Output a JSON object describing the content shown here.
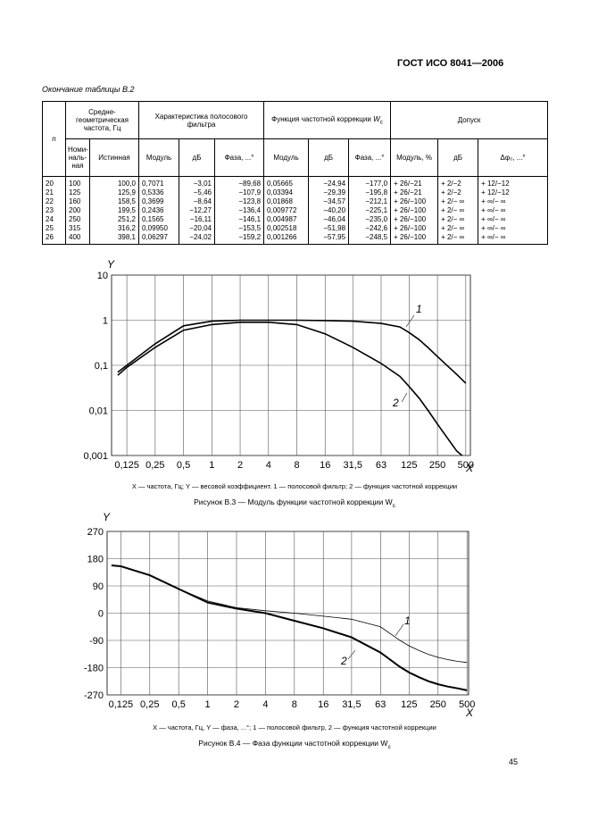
{
  "header": {
    "standard": "ГОСТ ИСО 8041—2006"
  },
  "table": {
    "caption": "Окончание таблицы В.2",
    "head": {
      "n": "n",
      "freq": "Средне-геометрическая частота, Гц",
      "filter": "Характеристика полосового фильтра",
      "wc": "Функция частотной коррекции",
      "wc_symbol": "W",
      "wc_sub": "c",
      "tolerance": "Допуск",
      "columns": [
        "Номи-наль-ная",
        "Истинная",
        "Модуль",
        "дБ",
        "Фаза, ...°",
        "Модуль",
        "дБ",
        "Фаза, ...°",
        "Модуль, %",
        "дБ",
        "Δφ₀, ...°"
      ]
    },
    "rows": [
      [
        "20",
        "100",
        "100,0",
        "0,7071",
        "−3,01",
        "−89,68",
        "0,05665",
        "−24,94",
        "−177,0",
        "+ 26/−21",
        "+ 2/−2",
        "+ 12/−12"
      ],
      [
        "21",
        "125",
        "125,9",
        "0,5336",
        "−5,46",
        "−107,9",
        "0,03394",
        "−29,39",
        "−195,8",
        "+ 26/−21",
        "+ 2/−2",
        "+ 12/−12"
      ],
      [
        "22",
        "160",
        "158,5",
        "0,3699",
        "−8,64",
        "−123,8",
        "0,01868",
        "−34,57",
        "−212,1",
        "+ 26/−100",
        "+ 2/− ∞",
        "+ ∞/− ∞"
      ],
      [
        "23",
        "200",
        "199,5",
        "0,2436",
        "−12,27",
        "−136,4",
        "0,009772",
        "−40,20",
        "−225,1",
        "+ 26/−100",
        "+ 2/− ∞",
        "+ ∞/− ∞"
      ],
      [
        "24",
        "250",
        "251,2",
        "0,1565",
        "−16,11",
        "−146,1",
        "0,004987",
        "−46,04",
        "−235,0",
        "+ 26/−100",
        "+ 2/− ∞",
        "+ ∞/− ∞"
      ],
      [
        "25",
        "315",
        "316,2",
        "0,09950",
        "−20,04",
        "−153,5",
        "0,002518",
        "−51,98",
        "−242,6",
        "+ 26/−100",
        "+ 2/− ∞",
        "+ ∞/− ∞"
      ],
      [
        "26",
        "400",
        "398,1",
        "0,06297",
        "−24,02",
        "−159,2",
        "0,001266",
        "−57,95",
        "−248,5",
        "+ 26/−100",
        "+ 2/− ∞",
        "+ ∞/− ∞"
      ]
    ]
  },
  "chart_data": [
    {
      "type": "line",
      "xscale": "log",
      "yscale": "log",
      "grid": true,
      "xlabel": "X",
      "ylabel": "Y",
      "note": "X — частота, Гц; Y — весовой коэффициент. 1 — полосовой фильтр; 2 — функция частотной коррекции",
      "title": "Рисунок В.3 — Модуль функции частотной коррекции W",
      "title_sub": "c",
      "xlim": [
        0.086,
        560
      ],
      "ylim": [
        0.001,
        10
      ],
      "xticks": [
        {
          "value": 0.125,
          "label": "0,125"
        },
        {
          "value": 0.25,
          "label": "0,25"
        },
        {
          "value": 0.5,
          "label": "0,5"
        },
        1,
        2,
        4,
        8,
        16,
        {
          "value": 31.5,
          "label": "31,5"
        },
        63,
        125,
        250,
        500
      ],
      "yticks": [
        {
          "value": 0.001,
          "label": "0,001"
        },
        {
          "value": 0.01,
          "label": "0,01"
        },
        {
          "value": 0.1,
          "label": "0,1"
        },
        1,
        10
      ],
      "x": [
        0.1,
        0.125,
        0.25,
        0.5,
        1,
        2,
        4,
        8,
        16,
        31.5,
        63,
        100,
        125,
        160,
        200,
        250,
        315,
        400,
        500
      ],
      "series": [
        {
          "name": "1",
          "color": "#000000",
          "line_width": 1.6,
          "values": [
            0.07,
            0.1,
            0.3,
            0.75,
            0.95,
            1,
            1,
            1,
            0.98,
            0.95,
            0.85,
            0.7071,
            0.5336,
            0.3699,
            0.2436,
            0.1565,
            0.0995,
            0.06297,
            0.04
          ]
        },
        {
          "name": "2",
          "color": "#000000",
          "line_width": 1.6,
          "values": [
            0.06,
            0.09,
            0.25,
            0.6,
            0.8,
            0.9,
            0.9,
            0.8,
            0.5,
            0.25,
            0.11,
            0.05665,
            0.03394,
            0.01868,
            0.009772,
            0.004987,
            0.002518,
            0.001266,
            0.00085
          ]
        }
      ]
    },
    {
      "type": "line",
      "xscale": "log",
      "grid": true,
      "xlabel": "X",
      "ylabel": "Y",
      "note": "X — частота, Гц, Y — фаза, ...°; 1 — полосовой фильтр, 2 — функция частотной коррекции",
      "title": "Рисунок В.4 — Фаза функции частотной коррекции W",
      "title_sub": "c",
      "xlim": [
        0.09,
        520
      ],
      "ylim": [
        -270,
        270
      ],
      "xticks": [
        {
          "value": 0.125,
          "label": "0,125"
        },
        {
          "value": 0.25,
          "label": "0,25"
        },
        {
          "value": 0.5,
          "label": "0,5"
        },
        1,
        2,
        4,
        8,
        16,
        {
          "value": 31.5,
          "label": "31,5"
        },
        63,
        125,
        250,
        500
      ],
      "yticks": [
        -270,
        -180,
        -90,
        0,
        90,
        180,
        270
      ],
      "x": [
        0.1,
        0.125,
        0.25,
        0.5,
        1,
        2,
        4,
        8,
        16,
        31.5,
        63,
        100,
        125,
        160,
        200,
        250,
        315,
        400,
        500
      ],
      "series": [
        {
          "name": "1",
          "color": "#000000",
          "line_width": 0.8,
          "values": [
            158,
            155,
            125,
            80,
            40,
            18,
            8,
            0,
            -10,
            -20,
            -45,
            -89.68,
            -107.9,
            -123.8,
            -136.4,
            -146.1,
            -153.5,
            -159.2,
            -163
          ]
        },
        {
          "name": "2",
          "color": "#000000",
          "line_width": 2,
          "values": [
            158,
            155,
            125,
            80,
            35,
            15,
            0,
            -25,
            -50,
            -80,
            -130,
            -177,
            -195.8,
            -212.1,
            -225.1,
            -235,
            -242.6,
            -248.5,
            -255
          ]
        }
      ]
    }
  ],
  "footer": {
    "page": "45"
  }
}
